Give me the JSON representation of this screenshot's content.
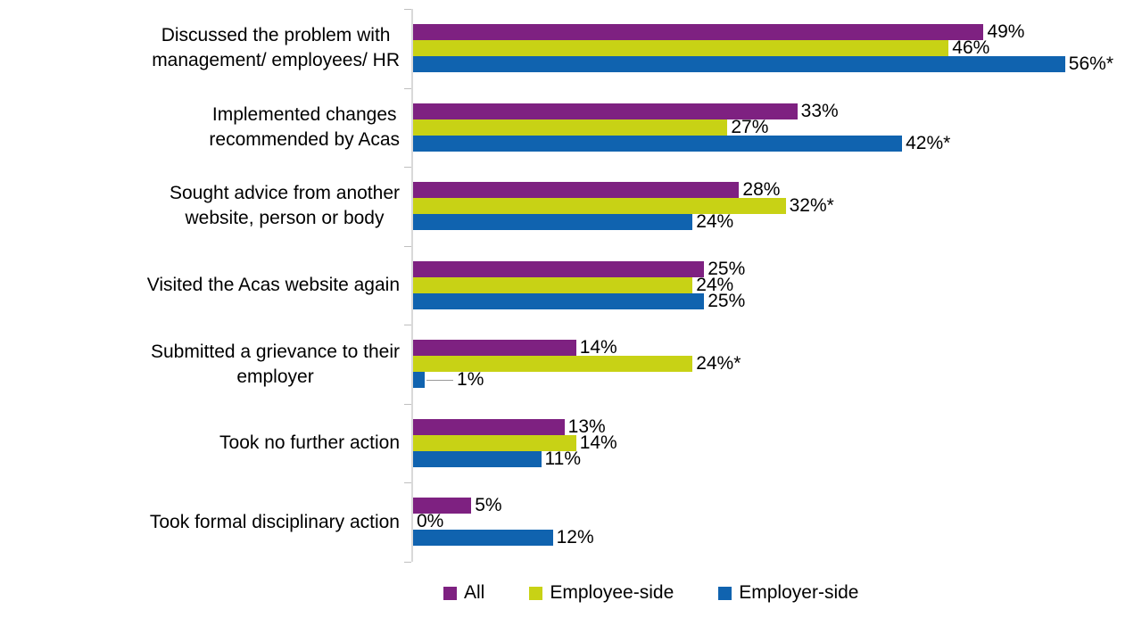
{
  "chart_data": {
    "type": "bar",
    "orientation": "horizontal",
    "title": "",
    "categories": [
      "Discussed the problem with\nmanagement/ employees/ HR",
      "Implemented changes\nrecommended by Acas",
      "Sought advice from another\nwebsite, person or body",
      "Visited the Acas website again",
      "Submitted a grievance to their\nemployer",
      "Took no further action",
      "Took formal disciplinary action"
    ],
    "series": [
      {
        "name": "All",
        "color": "#7e2181",
        "values": [
          49,
          33,
          28,
          25,
          14,
          13,
          5
        ],
        "labels": [
          "49%",
          "33%",
          "28%",
          "25%",
          "14%",
          "13%",
          "5%"
        ]
      },
      {
        "name": "Employee-side",
        "color": "#c8d215",
        "values": [
          46,
          27,
          32,
          24,
          24,
          14,
          0
        ],
        "labels": [
          "46%",
          "27%",
          "32%*",
          "24%",
          "24%*",
          "14%",
          "0%"
        ]
      },
      {
        "name": "Employer-side",
        "color": "#1063af",
        "values": [
          56,
          42,
          24,
          25,
          1,
          11,
          12
        ],
        "labels": [
          "56%*",
          "42%*",
          "24%",
          "25%",
          "1%",
          "11%",
          "12%"
        ]
      }
    ],
    "value_axis": {
      "min": 0,
      "max": 62,
      "gridlines": false,
      "tick_labels_visible": false
    },
    "legend_position": "bottom",
    "colors": {
      "axis_line": "#d9d9d9",
      "tick_mark": "#bfbfbf",
      "leader_line": "#999999",
      "text": "#000000",
      "background": "#ffffff"
    }
  }
}
